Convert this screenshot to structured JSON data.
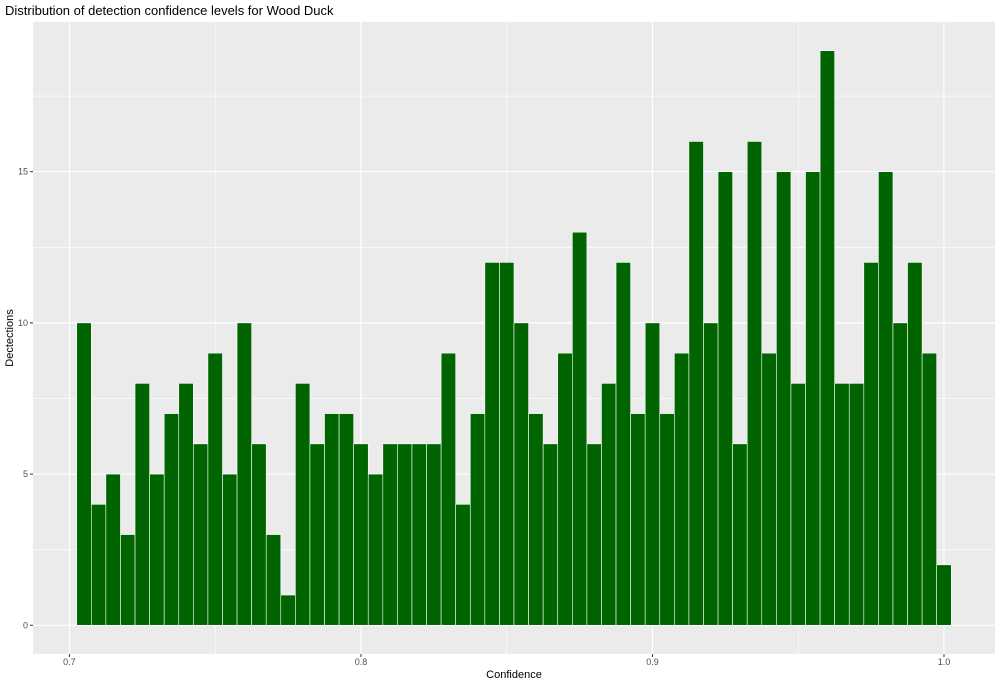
{
  "chart_data": {
    "type": "bar",
    "title": "Distribution of detection confidence levels for Wood Duck",
    "xlabel": "Confidence",
    "ylabel": "Dectections",
    "xlim": [
      0.6875,
      1.0175
    ],
    "ylim": [
      -0.95,
      19.95
    ],
    "x_ticks": [
      {
        "value": 0.7,
        "label": "0.7"
      },
      {
        "value": 0.8,
        "label": "0.8"
      },
      {
        "value": 0.9,
        "label": "0.9"
      },
      {
        "value": 1.0,
        "label": "1.0"
      }
    ],
    "y_ticks": [
      {
        "value": 0,
        "label": "0"
      },
      {
        "value": 5,
        "label": "5"
      },
      {
        "value": 10,
        "label": "10"
      },
      {
        "value": 15,
        "label": "15"
      }
    ],
    "bin_start": 0.7025,
    "bin_width": 0.005,
    "values": [
      10,
      4,
      5,
      3,
      8,
      5,
      7,
      8,
      6,
      9,
      5,
      10,
      6,
      3,
      1,
      8,
      6,
      7,
      7,
      6,
      5,
      6,
      6,
      6,
      6,
      9,
      4,
      7,
      12,
      12,
      10,
      7,
      6,
      9,
      13,
      6,
      8,
      12,
      7,
      10,
      7,
      9,
      16,
      10,
      15,
      6,
      16,
      9,
      15,
      8,
      15,
      19,
      8,
      8,
      12,
      15,
      10,
      12,
      9,
      2
    ],
    "bar_color": "#006400",
    "bar_outline": "#ffffff",
    "panel_background": "#ebebeb",
    "grid": true,
    "grid_color": "#ffffff"
  }
}
